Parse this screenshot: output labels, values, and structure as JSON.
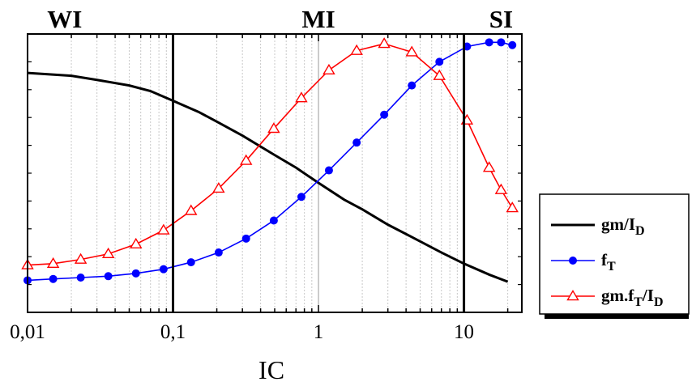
{
  "chart_data": {
    "type": "line",
    "title": "",
    "xlabel": "IC",
    "ylabel": "",
    "x_scale": "log",
    "xlim": [
      0.01,
      25
    ],
    "ylim": [
      0,
      1
    ],
    "grid": "vertical minor dotted",
    "x_tick_labels": [
      {
        "value": 0.01,
        "label": "0,01"
      },
      {
        "value": 0.1,
        "label": "0,1"
      },
      {
        "value": 1,
        "label": "1"
      },
      {
        "value": 10,
        "label": "10"
      }
    ],
    "region_boundaries": [
      0.1,
      10
    ],
    "regions": [
      {
        "label": "WI",
        "x": 0.018
      },
      {
        "label": "MI",
        "x": 1
      },
      {
        "label": "SI",
        "x": 18
      }
    ],
    "series": [
      {
        "name": "gm/I_D",
        "color": "#000000",
        "marker": "none",
        "x": [
          0.01,
          0.02,
          0.03,
          0.05,
          0.07,
          0.1,
          0.15,
          0.2,
          0.3,
          0.5,
          0.7,
          1,
          1.5,
          2,
          3,
          5,
          7,
          10,
          15,
          20
        ],
        "y": [
          0.86,
          0.85,
          0.835,
          0.815,
          0.795,
          0.76,
          0.72,
          0.685,
          0.635,
          0.565,
          0.52,
          0.465,
          0.405,
          0.37,
          0.315,
          0.255,
          0.215,
          0.175,
          0.135,
          0.11
        ]
      },
      {
        "name": "f_T",
        "color": "#0000ff",
        "marker": "circle",
        "x": [
          0.01,
          0.015,
          0.0232,
          0.0359,
          0.0556,
          0.0861,
          0.133,
          0.206,
          0.318,
          0.493,
          0.763,
          1.18,
          1.83,
          2.83,
          4.38,
          6.78,
          10.5,
          14.9,
          18.0,
          21.5
        ],
        "y": [
          0.115,
          0.12,
          0.125,
          0.13,
          0.14,
          0.155,
          0.18,
          0.215,
          0.265,
          0.33,
          0.415,
          0.51,
          0.61,
          0.71,
          0.815,
          0.9,
          0.955,
          0.97,
          0.97,
          0.96
        ]
      },
      {
        "name": "gm.f_T/I_D",
        "color": "#ff0000",
        "marker": "triangle-open",
        "x": [
          0.01,
          0.015,
          0.0232,
          0.0359,
          0.0556,
          0.0861,
          0.133,
          0.206,
          0.318,
          0.493,
          0.763,
          1.18,
          1.83,
          2.83,
          4.38,
          6.78,
          10.5,
          14.9,
          18.0,
          21.5
        ],
        "y": [
          0.17,
          0.175,
          0.19,
          0.21,
          0.245,
          0.295,
          0.365,
          0.445,
          0.545,
          0.66,
          0.77,
          0.87,
          0.94,
          0.965,
          0.935,
          0.85,
          0.69,
          0.52,
          0.44,
          0.375
        ]
      }
    ],
    "legend": {
      "position": "right",
      "entries": [
        {
          "main": "gm/I",
          "sub": "D",
          "tail": ""
        },
        {
          "main": "f",
          "sub": "T",
          "tail": ""
        },
        {
          "main": "gm.f",
          "sub": "T",
          "tail": "/I",
          "sub2": "D"
        }
      ]
    }
  }
}
